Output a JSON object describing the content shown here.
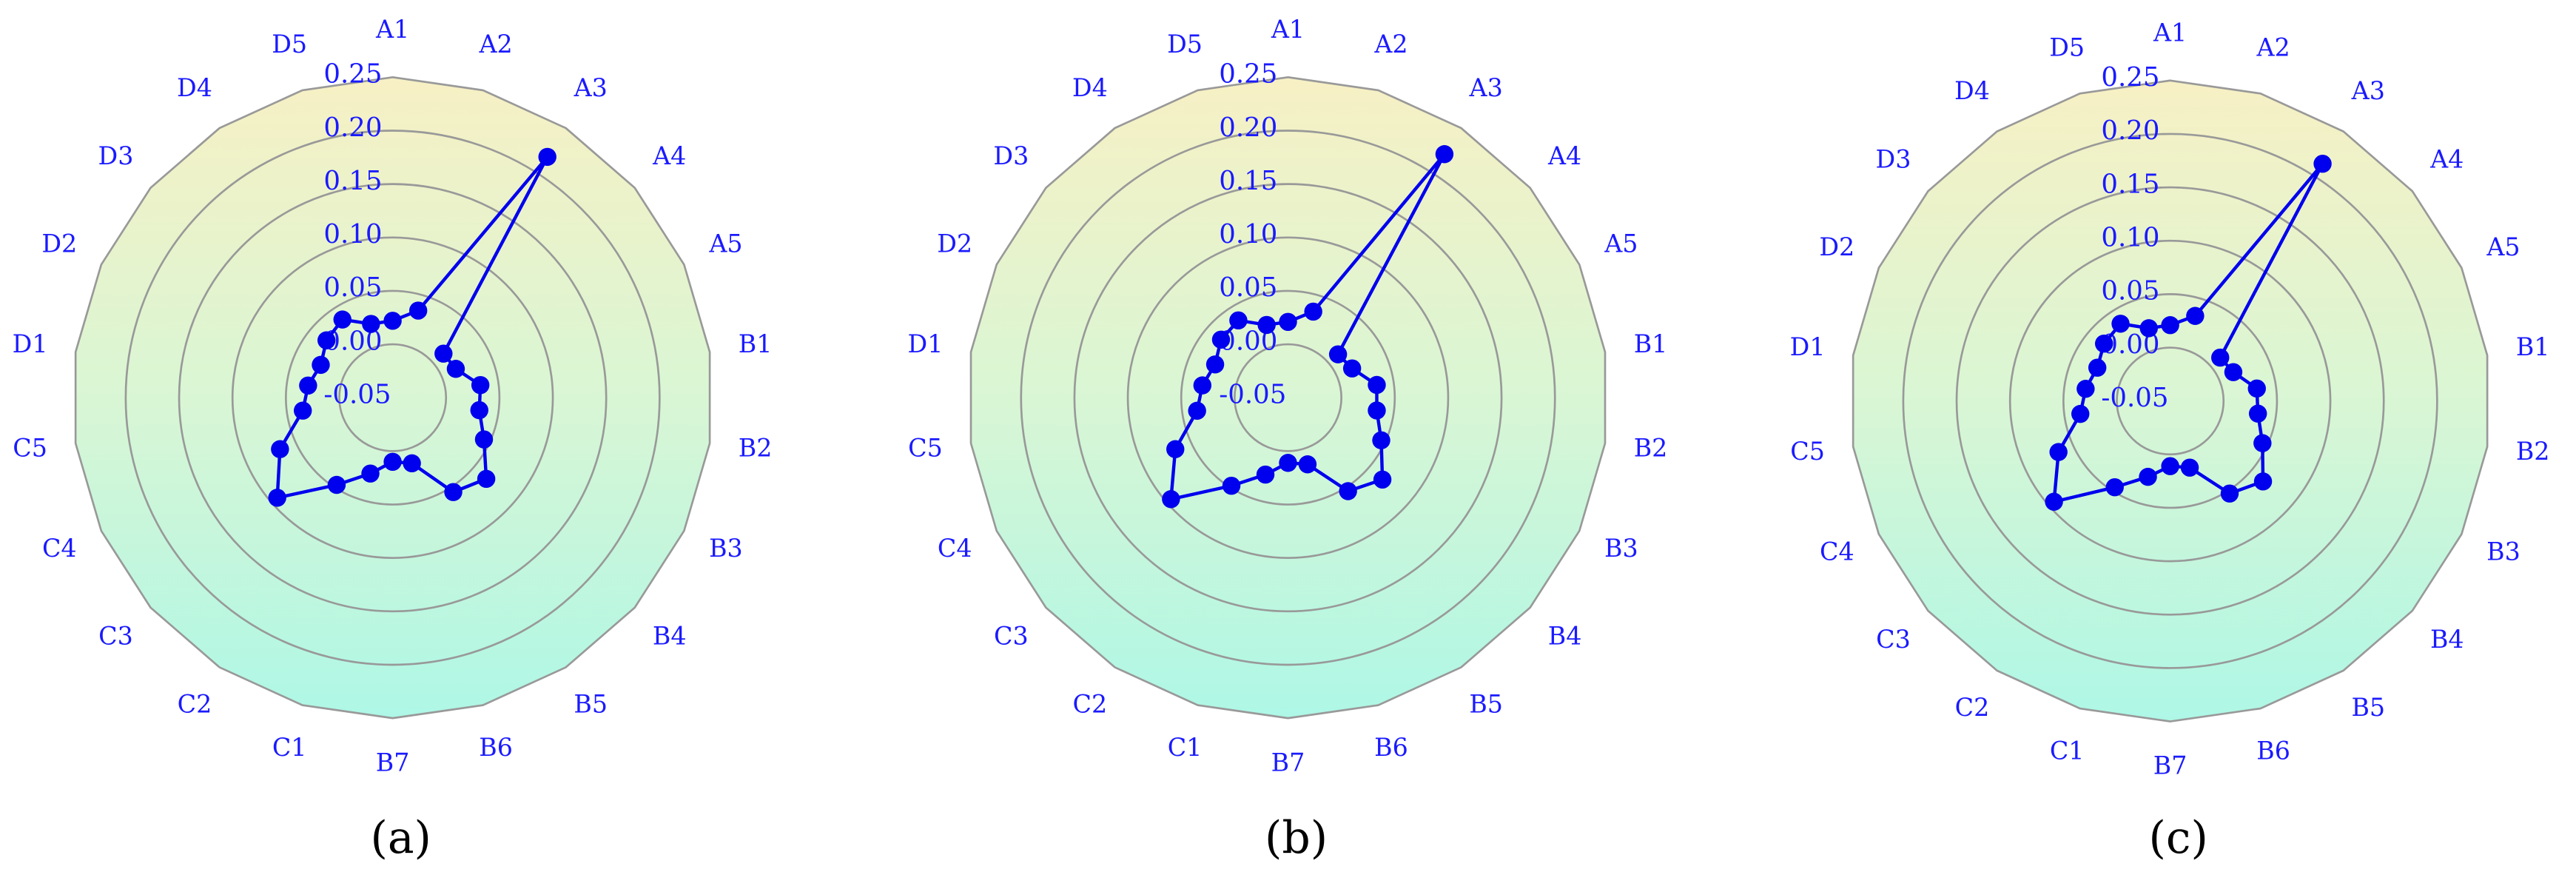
{
  "chart_data": [
    {
      "type": "radar",
      "panel_label": "(a)",
      "color": "#0000ee",
      "categories": [
        "A1",
        "A2",
        "A3",
        "A4",
        "A5",
        "B1",
        "B2",
        "B3",
        "B4",
        "B5",
        "B6",
        "B7",
        "C1",
        "C2",
        "C3",
        "C4",
        "C5",
        "D1",
        "D2",
        "D3",
        "D4",
        "D5"
      ],
      "values": [
        0.022,
        0.035,
        0.218,
        0.013,
        0.015,
        0.033,
        0.032,
        0.044,
        0.066,
        0.055,
        0.014,
        0.01,
        0.024,
        0.047,
        0.093,
        0.066,
        0.035,
        0.03,
        0.024,
        0.032,
        0.037,
        0.022
      ],
      "ylim": [
        -0.05,
        0.25
      ],
      "yticks": [
        -0.05,
        {
          "value": 0,
          "label": "0.00"
        },
        0.05,
        {
          "value": 0.1,
          "label": "0.10"
        },
        0.15,
        {
          "value": 0.2,
          "label": "0.20"
        },
        0.25
      ]
    },
    {
      "type": "radar",
      "panel_label": "(b)",
      "color": "#0000ee",
      "categories": [
        "A1",
        "A2",
        "A3",
        "A4",
        "A5",
        "B1",
        "B2",
        "B3",
        "B4",
        "B5",
        "B6",
        "B7",
        "C1",
        "C2",
        "C3",
        "C4",
        "C5",
        "D1",
        "D2",
        "D3",
        "D4",
        "D5"
      ],
      "values": [
        0.021,
        0.034,
        0.221,
        0.012,
        0.016,
        0.034,
        0.034,
        0.046,
        0.067,
        0.054,
        0.015,
        0.011,
        0.025,
        0.048,
        0.095,
        0.066,
        0.036,
        0.031,
        0.025,
        0.033,
        0.036,
        0.021
      ],
      "ylim": [
        -0.05,
        0.25
      ],
      "yticks": [
        -0.05,
        {
          "value": 0,
          "label": "0.00"
        },
        0.05,
        {
          "value": 0.1,
          "label": "0.10"
        },
        0.15,
        {
          "value": 0.2,
          "label": "0.20"
        },
        0.25
      ]
    },
    {
      "type": "radar",
      "panel_label": "(c)",
      "color": "#0000ee",
      "categories": [
        "A1",
        "A2",
        "A3",
        "A4",
        "A5",
        "B1",
        "B2",
        "B3",
        "B4",
        "B5",
        "B6",
        "B7",
        "C1",
        "C2",
        "C3",
        "C4",
        "C5",
        "D1",
        "D2",
        "D3",
        "D4",
        "D5"
      ],
      "values": [
        0.021,
        0.033,
        0.214,
        0.012,
        0.015,
        0.032,
        0.033,
        0.045,
        0.065,
        0.053,
        0.015,
        0.011,
        0.024,
        0.046,
        0.094,
        0.065,
        0.035,
        0.03,
        0.025,
        0.032,
        0.036,
        0.021
      ],
      "ylim": [
        -0.05,
        0.25
      ],
      "yticks": [
        -0.05,
        {
          "value": 0,
          "label": "0.00"
        },
        0.05,
        {
          "value": 0.1,
          "label": "0.10"
        },
        0.15,
        {
          "value": 0.2,
          "label": "0.20"
        },
        0.25
      ]
    }
  ]
}
